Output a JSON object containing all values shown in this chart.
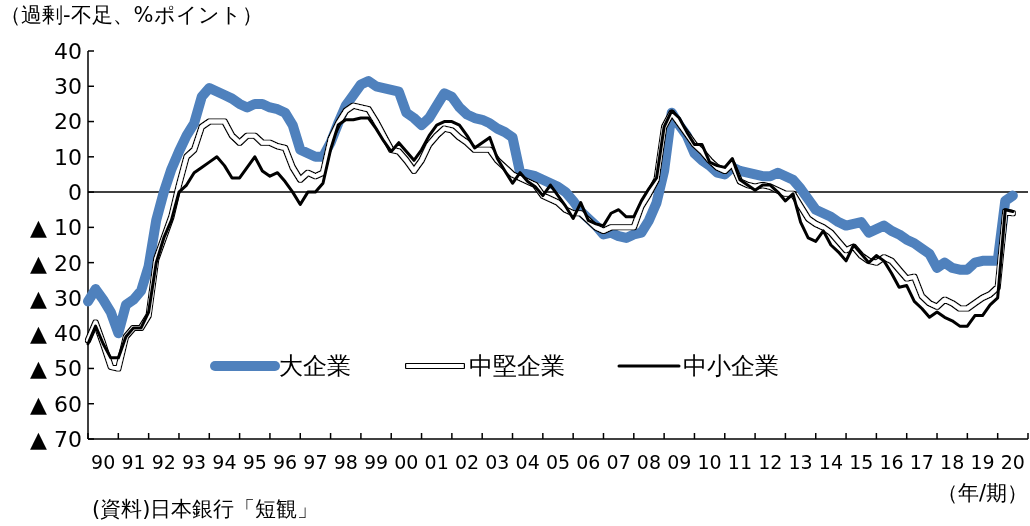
{
  "chart_data": {
    "type": "line",
    "ylabel": "（過剰-不足、%ポイント）",
    "annotations": [
      "(資料)日本銀行「短観」",
      "（年/期）"
    ],
    "categories": [
      null,
      null,
      "90",
      null,
      null,
      null,
      "91",
      null,
      null,
      null,
      "92",
      null,
      null,
      null,
      "93",
      null,
      null,
      null,
      "94",
      null,
      null,
      null,
      "95",
      null,
      null,
      null,
      "96",
      null,
      null,
      null,
      "97",
      null,
      null,
      null,
      "98",
      null,
      null,
      null,
      "99",
      null,
      null,
      null,
      "00",
      null,
      null,
      null,
      "01",
      null,
      null,
      null,
      "02",
      null,
      null,
      null,
      "03",
      null,
      null,
      null,
      "04",
      null,
      null,
      null,
      "05",
      null,
      null,
      null,
      "06",
      null,
      null,
      null,
      "07",
      null,
      null,
      null,
      "08",
      null,
      null,
      null,
      "09",
      null,
      null,
      null,
      "10",
      null,
      null,
      null,
      "11",
      null,
      null,
      null,
      "12",
      null,
      null,
      null,
      "13",
      null,
      null,
      null,
      "14",
      null,
      null,
      null,
      "15",
      null,
      null,
      null,
      "16",
      null,
      null,
      null,
      "17",
      null,
      null,
      null,
      "18",
      null,
      null,
      null,
      "19",
      null,
      null,
      null,
      "20",
      null
    ],
    "ylim": [
      -70,
      40
    ],
    "yticks": [
      40,
      30,
      20,
      10,
      0,
      {
        "value": -10,
        "label": "▲ 10"
      },
      {
        "value": -20,
        "label": "▲ 20"
      },
      {
        "value": -30,
        "label": "▲ 30"
      },
      {
        "value": -40,
        "label": "▲ 40"
      },
      {
        "value": -50,
        "label": "▲ 50"
      },
      {
        "value": -60,
        "label": "▲ 60"
      },
      {
        "value": -70,
        "label": "▲ 70"
      }
    ],
    "ref_lines": [
      {
        "axis": "y",
        "value": 0,
        "color": "#000000"
      }
    ],
    "legend": "bottom",
    "series": [
      {
        "name": "大企業",
        "color": "#4f81bd",
        "values": [
          -31,
          -27.5,
          -30.5,
          -34,
          -40,
          -32,
          -30.5,
          -28,
          -21,
          -8,
          0,
          6.5,
          11.5,
          16,
          19.5,
          27,
          29.5,
          28.5,
          27.5,
          26.5,
          25,
          24,
          25,
          25,
          24,
          23.5,
          22.5,
          19,
          12,
          11,
          10,
          10,
          14,
          19.5,
          24.5,
          27.5,
          30.5,
          31.5,
          30,
          29.5,
          29,
          28.5,
          22.5,
          21,
          19,
          21,
          24.5,
          28,
          27,
          24,
          22,
          21,
          20.5,
          19.5,
          18,
          17,
          15.5,
          5.5,
          5,
          4.5,
          3.5,
          2.5,
          1.5,
          0,
          -2.5,
          -5.5,
          -7.5,
          -9.5,
          -12,
          -11.5,
          -12.5,
          -13,
          -12,
          -11.5,
          -8,
          -3,
          6,
          22.5,
          19,
          16,
          11,
          9,
          7.5,
          5.5,
          5,
          7,
          6,
          5.5,
          5,
          4.5,
          4.5,
          5.5,
          4.5,
          3.5,
          1,
          -2,
          -5,
          -6,
          -7,
          -8.5,
          -9.5,
          -9,
          -8.5,
          -11.5,
          -10.5,
          -9.5,
          -11,
          -12,
          -13.5,
          -14.5,
          -16,
          -17.5,
          -21.5,
          -20,
          -21.5,
          -22,
          -22,
          -20,
          -19.5,
          -19.5,
          -19.5,
          -2.5,
          -1,
          null
        ]
      },
      {
        "name": "中堅企業",
        "color": "#ffffff",
        "values": [
          -42,
          -37,
          -43,
          -49.5,
          -50,
          -41,
          -38.5,
          -38.5,
          -35,
          -19,
          -13,
          -7,
          2,
          10,
          12,
          18.5,
          20,
          20,
          20,
          16,
          14,
          16,
          16,
          14,
          14,
          13,
          12.5,
          7,
          3.5,
          5.5,
          4.5,
          5.5,
          15,
          19.5,
          23,
          24.5,
          24,
          23.5,
          20,
          16,
          12,
          11.5,
          9,
          6,
          9,
          13.5,
          16,
          18,
          17.5,
          15.5,
          14,
          12,
          12,
          12,
          9,
          7,
          5,
          4,
          3,
          2,
          -1,
          -2,
          -3,
          -5,
          -6,
          -6,
          -8,
          -10,
          -11,
          -10,
          -10,
          -10,
          -10,
          -4,
          -0.5,
          3.5,
          18.5,
          22.5,
          19.5,
          16.5,
          13.5,
          11.5,
          9,
          7,
          6,
          8,
          3,
          2,
          1.5,
          2,
          1.5,
          0.5,
          -0.5,
          -0.5,
          -4,
          -7.5,
          -9,
          -10,
          -11.5,
          -14,
          -16.5,
          -15.5,
          -18,
          -19.5,
          -20,
          -18.5,
          -19.5,
          -22,
          -24.5,
          -24,
          -29.5,
          -31.5,
          -32.5,
          -30.5,
          -31.5,
          -33,
          -33,
          -31.5,
          -30,
          -29,
          -27,
          -5.5,
          -6,
          null
        ]
      },
      {
        "name": "中小企業",
        "color": "#000000",
        "values": [
          -43,
          -38,
          -43,
          -47,
          -47,
          -41,
          -38.5,
          -38.5,
          -34,
          -20,
          -13,
          -8,
          0,
          2,
          5.5,
          7,
          8.5,
          10,
          7.5,
          4,
          4,
          7,
          10,
          6,
          4.5,
          5.5,
          3,
          0,
          -3.5,
          0,
          0,
          2.5,
          12,
          19,
          20.5,
          20.5,
          21,
          21,
          18,
          14.5,
          11.5,
          14,
          11.5,
          9,
          12,
          16,
          19,
          20,
          20,
          19,
          16,
          12.5,
          14,
          15.5,
          9.5,
          6,
          2.5,
          5.5,
          3,
          1.5,
          -1,
          2,
          -1,
          -4,
          -7.5,
          -3,
          -8,
          -9,
          -9.5,
          -6,
          -5,
          -7,
          -7,
          -2.5,
          1,
          4,
          18.5,
          23,
          21,
          17,
          13.5,
          13.5,
          8.5,
          7.5,
          7,
          9.5,
          3.5,
          2,
          0.5,
          2,
          2,
          0,
          -2.5,
          -0.5,
          -8.5,
          -13,
          -14,
          -11,
          -15,
          -17,
          -19.5,
          -15,
          -17.5,
          -20,
          -18,
          -19.5,
          -23,
          -27,
          -26.5,
          -31,
          -33,
          -35.5,
          -34,
          -35.5,
          -36.5,
          -38,
          -38,
          -35,
          -35,
          -32,
          -30,
          -5,
          -5.5,
          null
        ]
      }
    ]
  }
}
